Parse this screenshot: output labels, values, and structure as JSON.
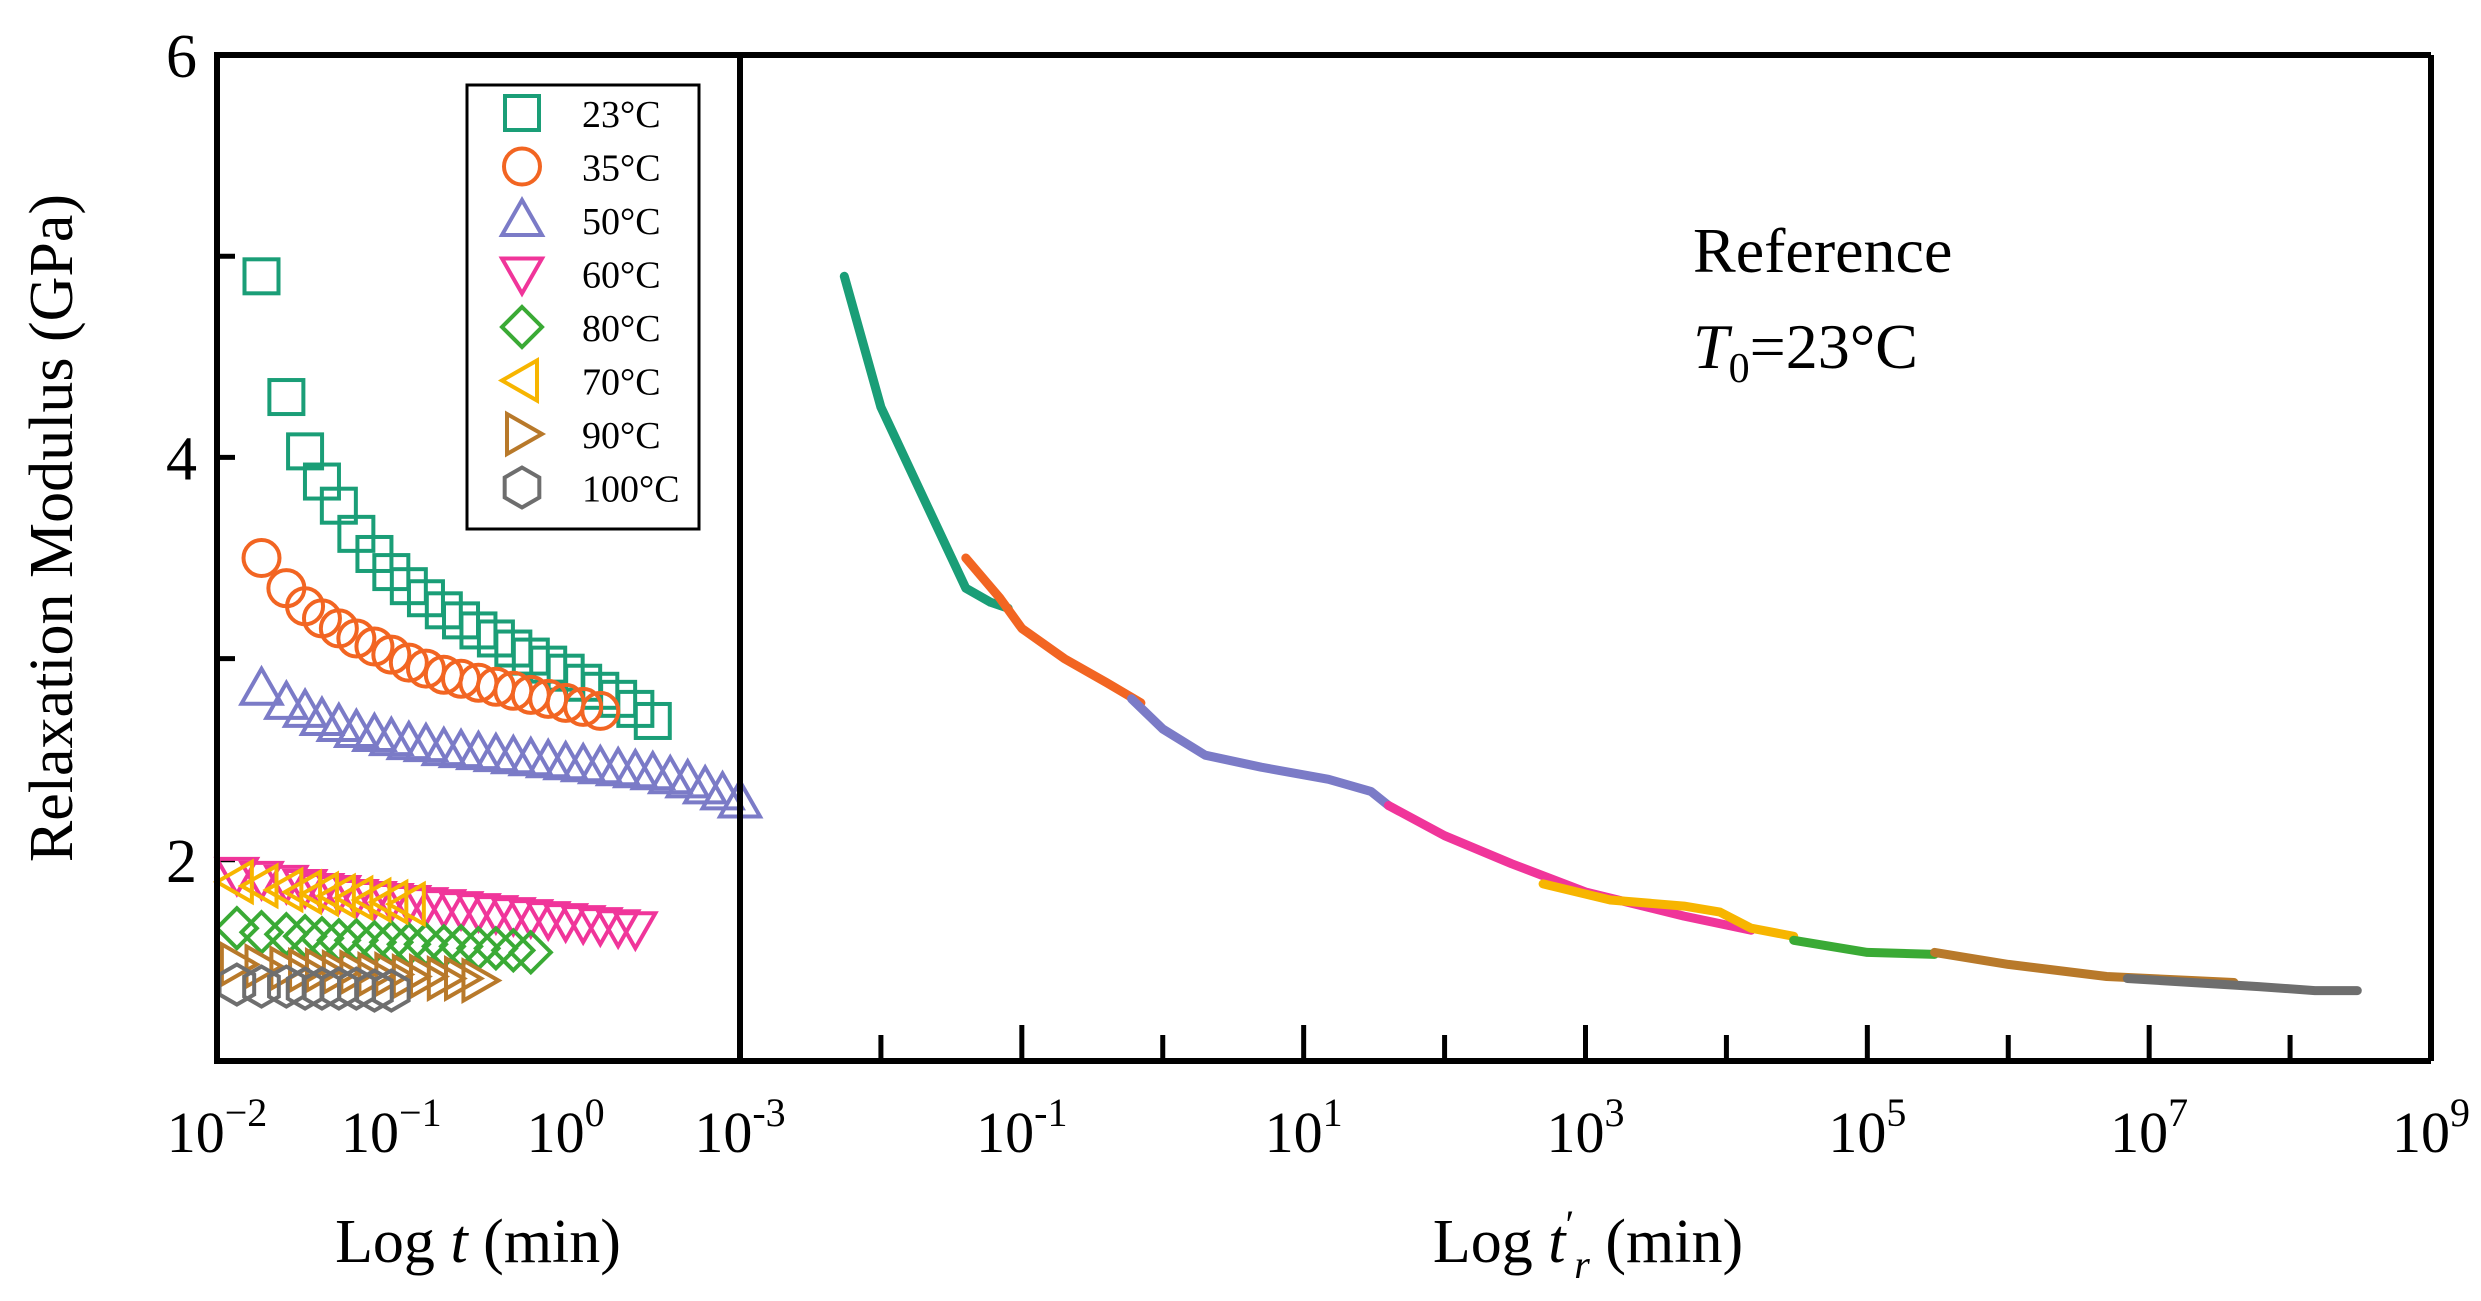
{
  "figure": {
    "ylabel": "Relaxation Modulus (GPa)",
    "annotation_line1": "Reference",
    "annotation_T": "T",
    "annotation_sub": "0",
    "annotation_rest": "=23°C"
  },
  "chart_data": [
    {
      "type": "scatter",
      "panel": "left",
      "xlabel_prefix": "Log ",
      "xlabel_var": "t",
      "xlabel_suffix": " (min)",
      "ylabel": "Relaxation Modulus (GPa)",
      "xscale": "log",
      "xlim": [
        0.01,
        10
      ],
      "ylim": [
        1.0,
        6.0
      ],
      "yticks": [
        2,
        4,
        6
      ],
      "ytick_labels": [
        "2",
        "4",
        "6"
      ],
      "xticks": [
        0.01,
        0.1,
        1
      ],
      "xtick_labels": [
        {
          "base": "10",
          "exp": "−2"
        },
        {
          "base": "10",
          "exp": "−1"
        },
        {
          "base": "10",
          "exp": "0"
        }
      ],
      "legend_position": "top-right",
      "series": [
        {
          "name": "23°C",
          "marker": "square",
          "color": "#1a9e77",
          "x": [
            0.018,
            0.025,
            0.032,
            0.04,
            0.05,
            0.063,
            0.08,
            0.1,
            0.126,
            0.158,
            0.2,
            0.251,
            0.316,
            0.398,
            0.501,
            0.631,
            0.794,
            1.0,
            1.26,
            1.58,
            2.0,
            2.51,
            3.16
          ],
          "y": [
            4.9,
            4.3,
            4.03,
            3.88,
            3.76,
            3.62,
            3.52,
            3.43,
            3.36,
            3.3,
            3.24,
            3.19,
            3.14,
            3.1,
            3.05,
            3.01,
            2.97,
            2.93,
            2.88,
            2.84,
            2.8,
            2.75,
            2.69
          ]
        },
        {
          "name": "35°C",
          "marker": "circle",
          "color": "#f26522",
          "x": [
            0.018,
            0.025,
            0.032,
            0.04,
            0.05,
            0.063,
            0.08,
            0.1,
            0.126,
            0.158,
            0.2,
            0.251,
            0.316,
            0.398,
            0.501,
            0.631,
            0.794,
            1.0,
            1.26,
            1.58
          ],
          "y": [
            3.5,
            3.35,
            3.26,
            3.2,
            3.15,
            3.1,
            3.06,
            3.02,
            2.98,
            2.95,
            2.92,
            2.9,
            2.88,
            2.86,
            2.84,
            2.82,
            2.8,
            2.78,
            2.76,
            2.74
          ]
        },
        {
          "name": "50°C",
          "marker": "triangle-up",
          "color": "#7b7bc7",
          "x": [
            0.018,
            0.025,
            0.032,
            0.04,
            0.05,
            0.063,
            0.08,
            0.1,
            0.126,
            0.158,
            0.2,
            0.251,
            0.316,
            0.398,
            0.501,
            0.631,
            0.794,
            1.0,
            1.26,
            1.58,
            2.0,
            2.51,
            3.16,
            3.98,
            5.01,
            6.31,
            7.94,
            10.0
          ],
          "y": [
            2.85,
            2.78,
            2.74,
            2.7,
            2.67,
            2.64,
            2.62,
            2.6,
            2.58,
            2.57,
            2.55,
            2.54,
            2.53,
            2.52,
            2.51,
            2.5,
            2.49,
            2.48,
            2.47,
            2.46,
            2.45,
            2.44,
            2.43,
            2.41,
            2.39,
            2.36,
            2.33,
            2.29
          ]
        },
        {
          "name": "60°C",
          "marker": "triangle-down",
          "color": "#f0359a",
          "x": [
            0.013,
            0.018,
            0.025,
            0.032,
            0.04,
            0.05,
            0.063,
            0.08,
            0.1,
            0.126,
            0.158,
            0.2,
            0.251,
            0.316,
            0.398,
            0.501,
            0.631,
            0.794,
            1.0,
            1.26,
            1.58,
            2.0,
            2.51
          ],
          "y": [
            1.93,
            1.91,
            1.89,
            1.87,
            1.85,
            1.84,
            1.82,
            1.81,
            1.8,
            1.79,
            1.78,
            1.77,
            1.76,
            1.75,
            1.74,
            1.73,
            1.72,
            1.71,
            1.7,
            1.69,
            1.68,
            1.67,
            1.66
          ]
        },
        {
          "name": "80°C",
          "marker": "diamond",
          "color": "#3aaa35",
          "x": [
            0.013,
            0.018,
            0.025,
            0.032,
            0.04,
            0.05,
            0.063,
            0.08,
            0.1,
            0.126,
            0.158,
            0.2,
            0.251,
            0.316,
            0.398,
            0.501,
            0.631
          ],
          "y": [
            1.66,
            1.64,
            1.63,
            1.62,
            1.61,
            1.6,
            1.6,
            1.59,
            1.59,
            1.58,
            1.58,
            1.57,
            1.57,
            1.56,
            1.56,
            1.55,
            1.54
          ]
        },
        {
          "name": "70°C",
          "marker": "triangle-left",
          "color": "#f7b500",
          "x": [
            0.013,
            0.018,
            0.025,
            0.032,
            0.04,
            0.05,
            0.063,
            0.08,
            0.1,
            0.126
          ],
          "y": [
            1.89,
            1.87,
            1.85,
            1.84,
            1.83,
            1.82,
            1.81,
            1.8,
            1.79,
            1.78
          ]
        },
        {
          "name": "90°C",
          "marker": "triangle-right",
          "color": "#b8792a",
          "x": [
            0.013,
            0.018,
            0.025,
            0.032,
            0.04,
            0.05,
            0.063,
            0.08,
            0.1,
            0.126,
            0.158,
            0.2,
            0.251,
            0.316
          ],
          "y": [
            1.48,
            1.47,
            1.46,
            1.45,
            1.45,
            1.44,
            1.44,
            1.43,
            1.43,
            1.42,
            1.42,
            1.41,
            1.41,
            1.4
          ]
        },
        {
          "name": "100°C",
          "marker": "hexagon",
          "color": "#6e6e6e",
          "x": [
            0.013,
            0.018,
            0.025,
            0.032,
            0.04,
            0.05,
            0.063,
            0.08,
            0.1
          ],
          "y": [
            1.38,
            1.37,
            1.37,
            1.36,
            1.36,
            1.36,
            1.36,
            1.35,
            1.35
          ]
        }
      ]
    },
    {
      "type": "line",
      "panel": "right",
      "xlabel_prefix": "Log ",
      "xlabel_var": "t",
      "xlabel_prime": "′",
      "xlabel_sub": "r",
      "xlabel_suffix": " (min)",
      "xscale": "log",
      "xlim": [
        0.001,
        1000000000
      ],
      "ylim": [
        1.0,
        6.0
      ],
      "xticks": [
        0.001,
        0.1,
        10,
        1000,
        100000,
        10000000,
        1000000000
      ],
      "xtick_labels": [
        {
          "base": "10",
          "exp": "-3"
        },
        {
          "base": "10",
          "exp": "-1"
        },
        {
          "base": "10",
          "exp": "1"
        },
        {
          "base": "10",
          "exp": "3"
        },
        {
          "base": "10",
          "exp": "5"
        },
        {
          "base": "10",
          "exp": "7"
        },
        {
          "base": "10",
          "exp": "9"
        }
      ],
      "series": [
        {
          "name": "23°C",
          "color": "#1a9e77",
          "x": [
            0.0055,
            0.01,
            0.02,
            0.04,
            0.06,
            0.08
          ],
          "y": [
            4.9,
            4.25,
            3.8,
            3.35,
            3.28,
            3.25
          ]
        },
        {
          "name": "35°C",
          "color": "#f26522",
          "x": [
            0.04,
            0.07,
            0.1,
            0.2,
            0.4,
            0.7
          ],
          "y": [
            3.5,
            3.3,
            3.15,
            3.0,
            2.88,
            2.78
          ]
        },
        {
          "name": "50°C",
          "color": "#7b7bc7",
          "x": [
            0.6,
            1.0,
            2.0,
            5.0,
            15.0,
            30.0,
            40.0
          ],
          "y": [
            2.8,
            2.65,
            2.52,
            2.46,
            2.4,
            2.34,
            2.27
          ]
        },
        {
          "name": "60°C",
          "color": "#f0359a",
          "x": [
            40.0,
            100.0,
            300.0,
            1000.0,
            5000.0,
            15000.0
          ],
          "y": [
            2.27,
            2.12,
            1.98,
            1.84,
            1.72,
            1.65
          ]
        },
        {
          "name": "70°C",
          "color": "#f7b500",
          "x": [
            500.0,
            1500.0,
            5000.0,
            9000.0,
            15000.0,
            30000.0
          ],
          "y": [
            1.88,
            1.8,
            1.77,
            1.74,
            1.66,
            1.62
          ]
        },
        {
          "name": "80°C",
          "color": "#3aaa35",
          "x": [
            30000.0,
            100000.0,
            300000.0
          ],
          "y": [
            1.6,
            1.54,
            1.53
          ]
        },
        {
          "name": "90°C",
          "color": "#b8792a",
          "x": [
            300000.0,
            1000000.0,
            5000000.0,
            20000000.0,
            40000000.0
          ],
          "y": [
            1.54,
            1.48,
            1.42,
            1.4,
            1.39
          ]
        },
        {
          "name": "100°C",
          "color": "#6e6e6e",
          "x": [
            7000000.0,
            20000000.0,
            60000000.0,
            150000000.0,
            300000000.0
          ],
          "y": [
            1.41,
            1.39,
            1.37,
            1.35,
            1.35
          ]
        }
      ]
    }
  ]
}
